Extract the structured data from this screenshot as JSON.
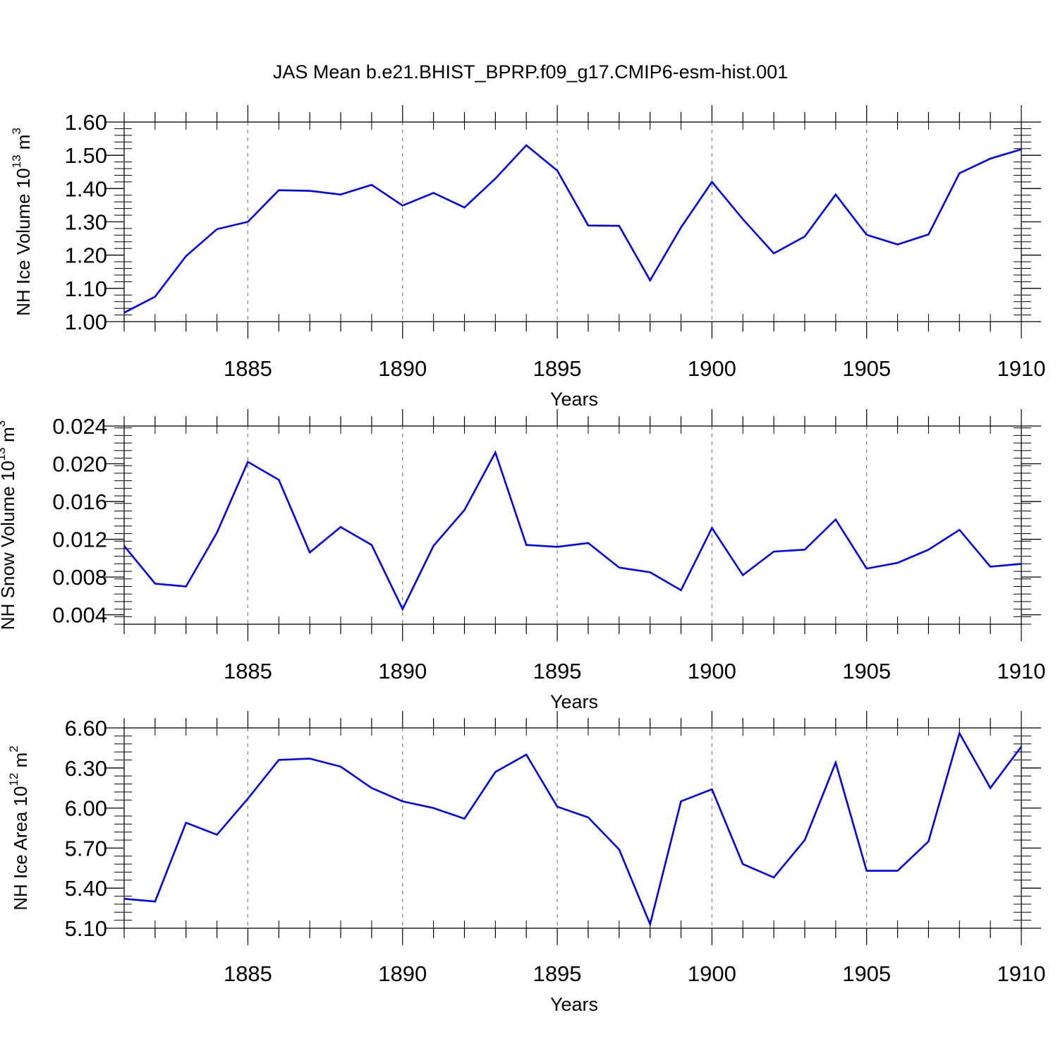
{
  "title": "JAS Mean b.e21.BHIST_BPRP.f09_g17.CMIP6-esm-hist.001",
  "colors": {
    "line": "#0000ff",
    "axis": "#000000",
    "grid": "#808080"
  },
  "chart_data": [
    {
      "type": "line",
      "ylabel": "NH Ice Volume 10",
      "ylabel_exp": "13",
      "ylabel_unit": " m",
      "ylabel_unit_exp": "3",
      "xlabel": "Years",
      "xlim": [
        1881,
        1910
      ],
      "ylim": [
        1.0,
        1.6
      ],
      "yticks": [
        "1.00",
        "1.10",
        "1.20",
        "1.30",
        "1.40",
        "1.50",
        "1.60"
      ],
      "xticks": [
        "1885",
        "1890",
        "1895",
        "1900",
        "1905",
        "1910"
      ],
      "grid": "vertical dashed at major x ticks",
      "x": [
        1881,
        1882,
        1883,
        1884,
        1885,
        1886,
        1887,
        1888,
        1889,
        1890,
        1891,
        1892,
        1893,
        1894,
        1895,
        1896,
        1897,
        1898,
        1899,
        1900,
        1901,
        1902,
        1903,
        1904,
        1905,
        1906,
        1907,
        1908,
        1909,
        1910
      ],
      "values": [
        1.027,
        1.075,
        1.197,
        1.278,
        1.3,
        1.395,
        1.393,
        1.382,
        1.411,
        1.349,
        1.387,
        1.343,
        1.43,
        1.53,
        1.454,
        1.289,
        1.288,
        1.124,
        1.283,
        1.42,
        1.308,
        1.205,
        1.256,
        1.382,
        1.261,
        1.232,
        1.262,
        1.446,
        1.49,
        1.518
      ]
    },
    {
      "type": "line",
      "ylabel": "NH Snow Volume 10",
      "ylabel_exp": "13",
      "ylabel_unit": " m",
      "ylabel_unit_exp": "3",
      "xlabel": "Years",
      "xlim": [
        1881,
        1910
      ],
      "ylim": [
        0.003,
        0.024
      ],
      "yticks": [
        "0.004",
        "0.008",
        "0.012",
        "0.016",
        "0.020",
        "0.024"
      ],
      "xticks": [
        "1885",
        "1890",
        "1895",
        "1900",
        "1905",
        "1910"
      ],
      "grid": "vertical dashed at major x ticks",
      "x": [
        1881,
        1882,
        1883,
        1884,
        1885,
        1886,
        1887,
        1888,
        1889,
        1890,
        1891,
        1892,
        1893,
        1894,
        1895,
        1896,
        1897,
        1898,
        1899,
        1900,
        1901,
        1902,
        1903,
        1904,
        1905,
        1906,
        1907,
        1908,
        1909,
        1910
      ],
      "values": [
        0.0113,
        0.0073,
        0.007,
        0.0127,
        0.0202,
        0.0183,
        0.0106,
        0.0133,
        0.0114,
        0.0046,
        0.0113,
        0.0151,
        0.0212,
        0.0114,
        0.0112,
        0.0116,
        0.009,
        0.0085,
        0.0066,
        0.0132,
        0.0082,
        0.0107,
        0.0109,
        0.0141,
        0.0089,
        0.0095,
        0.0109,
        0.013,
        0.0091,
        0.0094
      ]
    },
    {
      "type": "line",
      "ylabel": "NH Ice Area 10",
      "ylabel_exp": "12",
      "ylabel_unit": " m",
      "ylabel_unit_exp": "2",
      "xlabel": "Years",
      "xlim": [
        1881,
        1910
      ],
      "ylim": [
        5.1,
        6.6
      ],
      "yticks": [
        "5.10",
        "5.40",
        "5.70",
        "6.00",
        "6.30",
        "6.60"
      ],
      "xticks": [
        "1885",
        "1890",
        "1895",
        "1900",
        "1905",
        "1910"
      ],
      "grid": "vertical dashed at major x ticks",
      "x": [
        1881,
        1882,
        1883,
        1884,
        1885,
        1886,
        1887,
        1888,
        1889,
        1890,
        1891,
        1892,
        1893,
        1894,
        1895,
        1896,
        1897,
        1898,
        1899,
        1900,
        1901,
        1902,
        1903,
        1904,
        1905,
        1906,
        1907,
        1908,
        1909,
        1910
      ],
      "values": [
        5.32,
        5.3,
        5.89,
        5.8,
        6.07,
        6.36,
        6.37,
        6.31,
        6.15,
        6.05,
        6.0,
        5.92,
        6.27,
        6.4,
        6.01,
        5.93,
        5.69,
        5.13,
        6.05,
        6.14,
        5.58,
        5.48,
        5.76,
        6.34,
        5.53,
        5.53,
        5.75,
        6.56,
        6.15,
        6.46
      ]
    }
  ]
}
